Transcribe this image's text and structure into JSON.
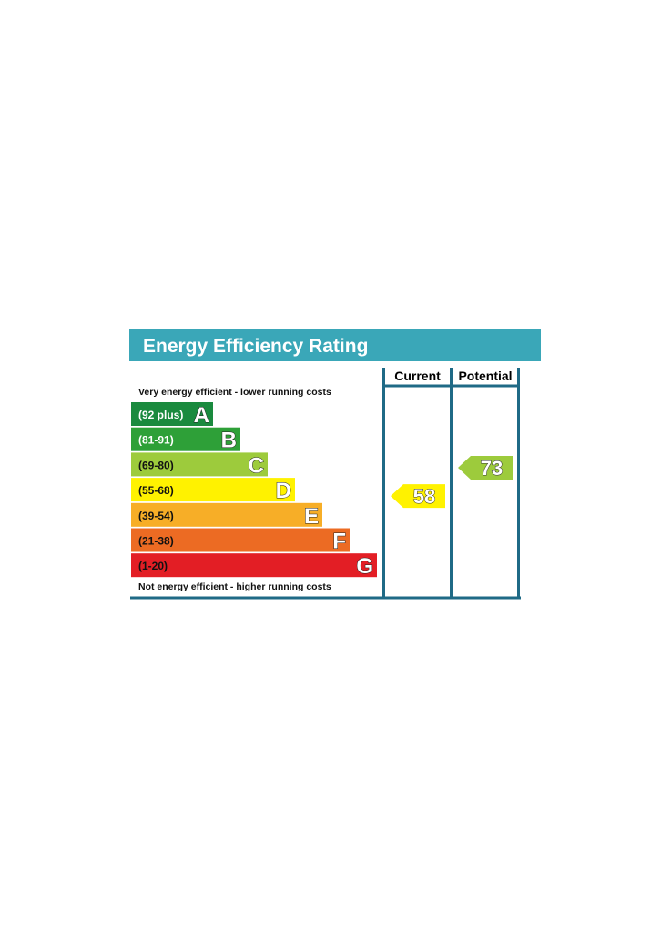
{
  "chart_data": {
    "type": "bar",
    "title": "Energy Efficiency Rating",
    "columns": [
      "Current",
      "Potential"
    ],
    "top_caption": "Very energy efficient - lower running costs",
    "bottom_caption": "Not energy efficient - higher running costs",
    "bands": [
      {
        "letter": "A",
        "range": "(92 plus)",
        "min": 92,
        "max": 100,
        "color": "#1a8a3e",
        "label_color": "#ffffff"
      },
      {
        "letter": "B",
        "range": "(81-91)",
        "min": 81,
        "max": 91,
        "color": "#2ea038",
        "label_color": "#ffffff"
      },
      {
        "letter": "C",
        "range": "(69-80)",
        "min": 69,
        "max": 80,
        "color": "#9dcb3c",
        "label_color": "#111111"
      },
      {
        "letter": "D",
        "range": "(55-68)",
        "min": 55,
        "max": 68,
        "color": "#fff200",
        "label_color": "#111111"
      },
      {
        "letter": "E",
        "range": "(39-54)",
        "min": 39,
        "max": 54,
        "color": "#f7ae27",
        "label_color": "#111111"
      },
      {
        "letter": "F",
        "range": "(21-38)",
        "min": 21,
        "max": 38,
        "color": "#ec6b23",
        "label_color": "#111111"
      },
      {
        "letter": "G",
        "range": "(1-20)",
        "min": 1,
        "max": 20,
        "color": "#e31e25",
        "label_color": "#111111"
      }
    ],
    "current": {
      "value": 58,
      "band": "D",
      "color": "#fff200"
    },
    "potential": {
      "value": 73,
      "band": "C",
      "color": "#9dcb3c"
    },
    "header_color": "#3aa7b8",
    "frame_color": "#1f6a86"
  }
}
